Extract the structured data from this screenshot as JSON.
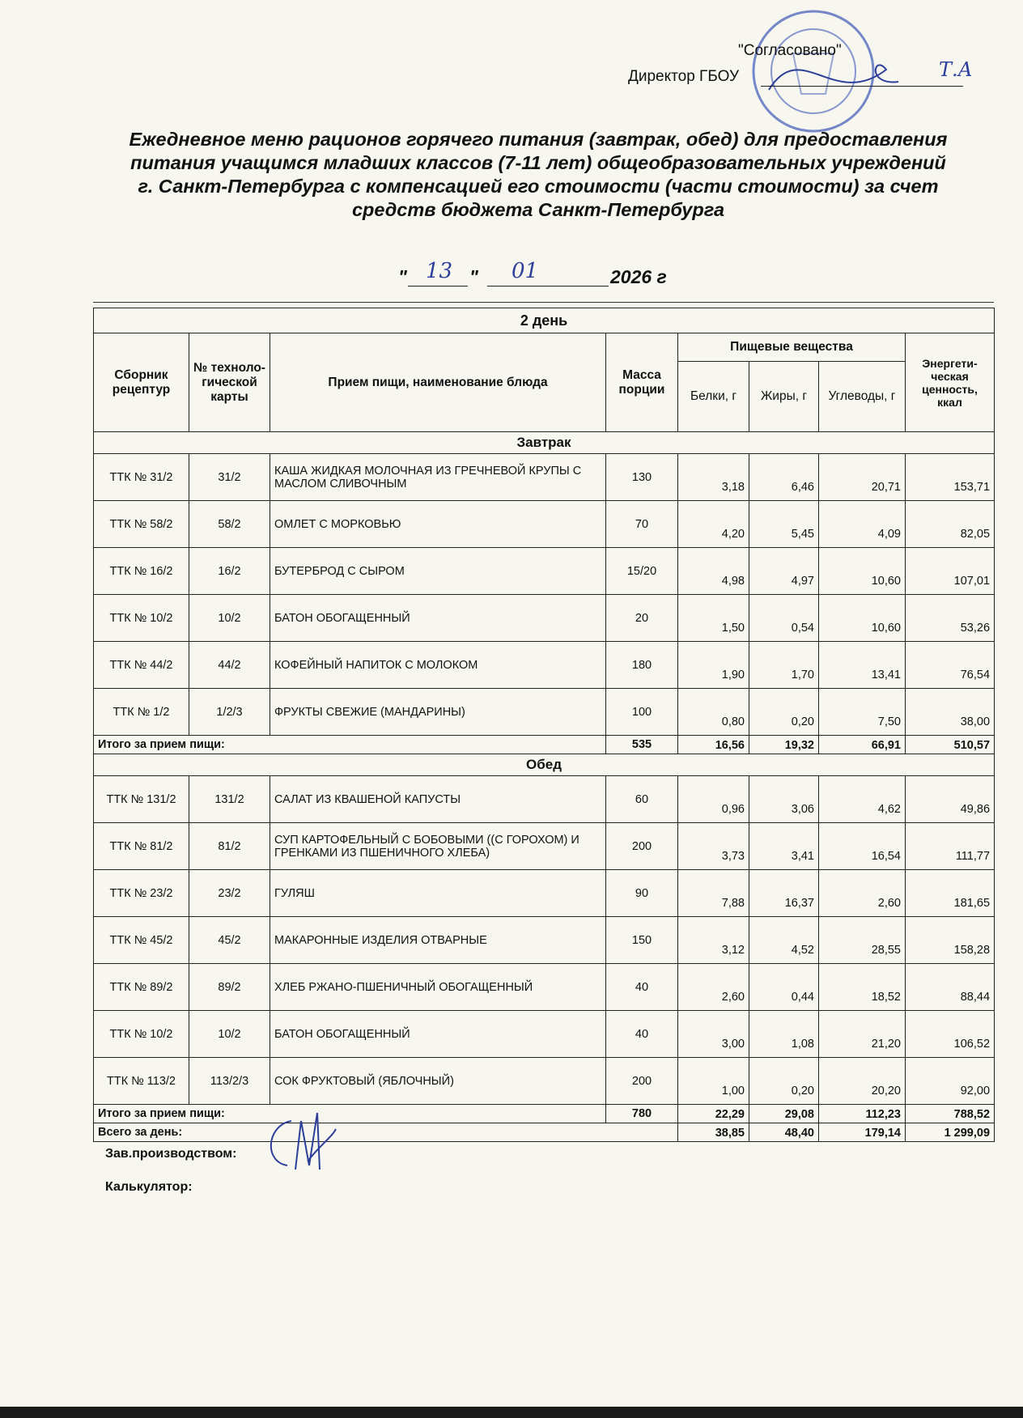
{
  "header": {
    "approval": "\"Согласовано\"",
    "director": "Директор ГБОУ",
    "signature": "Т.А"
  },
  "title_lines": [
    "Ежедневное меню рационов горячего питания (завтрак, обед) для предоставления",
    "питания учащимся младших классов  (7-11 лет) общеобразовательных учреждений",
    "г. Санкт-Петербурга с компенсацией его стоимости (части стоимости) за счет",
    "средств бюджета Санкт-Петербурга"
  ],
  "date": {
    "quote": "\"",
    "day": "13",
    "month": "01",
    "year": "2026 г"
  },
  "table": {
    "day_label": "2 день",
    "columns": {
      "collection": "Сборник рецептур",
      "card": "№ техноло-гической карты",
      "dish": "Прием пищи, наименование блюда",
      "mass": "Масса порции",
      "nutrients": "Пищевые вещества",
      "protein": "Белки, г",
      "fat": "Жиры, г",
      "carbs": "Углеводы, г",
      "energy": "Энергети-ческая ценность, ккал"
    },
    "sections": [
      {
        "name": "Завтрак",
        "rows": [
          [
            "ТТК № 31/2",
            "31/2",
            "КАША ЖИДКАЯ МОЛОЧНАЯ ИЗ ГРЕЧНЕВОЙ КРУПЫ С МАСЛОМ СЛИВОЧНЫМ",
            "130",
            "3,18",
            "6,46",
            "20,71",
            "153,71"
          ],
          [
            "ТТК № 58/2",
            "58/2",
            "ОМЛЕТ С МОРКОВЬЮ",
            "70",
            "4,20",
            "5,45",
            "4,09",
            "82,05"
          ],
          [
            "ТТК № 16/2",
            "16/2",
            "БУТЕРБРОД С СЫРОМ",
            "15/20",
            "4,98",
            "4,97",
            "10,60",
            "107,01"
          ],
          [
            "ТТК № 10/2",
            "10/2",
            "БАТОН ОБОГАЩЕННЫЙ",
            "20",
            "1,50",
            "0,54",
            "10,60",
            "53,26"
          ],
          [
            "ТТК № 44/2",
            "44/2",
            "КОФЕЙНЫЙ НАПИТОК С МОЛОКОМ",
            "180",
            "1,90",
            "1,70",
            "13,41",
            "76,54"
          ],
          [
            "ТТК № 1/2",
            "1/2/3",
            "ФРУКТЫ СВЕЖИЕ (МАНДАРИНЫ)",
            "100",
            "0,80",
            "0,20",
            "7,50",
            "38,00"
          ]
        ],
        "total": {
          "label": "Итого за прием пищи:",
          "values": [
            "535",
            "16,56",
            "19,32",
            "66,91",
            "510,57"
          ]
        }
      },
      {
        "name": "Обед",
        "rows": [
          [
            "ТТК № 131/2",
            "131/2",
            "САЛАТ ИЗ КВАШЕНОЙ КАПУСТЫ",
            "60",
            "0,96",
            "3,06",
            "4,62",
            "49,86"
          ],
          [
            "ТТК № 81/2",
            "81/2",
            "СУП КАРТОФЕЛЬНЫЙ С БОБОВЫМИ ((С ГОРОХОМ) И ГРЕНКАМИ ИЗ ПШЕНИЧНОГО ХЛЕБА)",
            "200",
            "3,73",
            "3,41",
            "16,54",
            "111,77"
          ],
          [
            "ТТК № 23/2",
            "23/2",
            "ГУЛЯШ",
            "90",
            "7,88",
            "16,37",
            "2,60",
            "181,65"
          ],
          [
            "ТТК № 45/2",
            "45/2",
            "МАКАРОННЫЕ ИЗДЕЛИЯ ОТВАРНЫЕ",
            "150",
            "3,12",
            "4,52",
            "28,55",
            "158,28"
          ],
          [
            "ТТК № 89/2",
            "89/2",
            "ХЛЕБ РЖАНО-ПШЕНИЧНЫЙ ОБОГАЩЕННЫЙ",
            "40",
            "2,60",
            "0,44",
            "18,52",
            "88,44"
          ],
          [
            "ТТК № 10/2",
            "10/2",
            "БАТОН ОБОГАЩЕННЫЙ",
            "40",
            "3,00",
            "1,08",
            "21,20",
            "106,52"
          ],
          [
            "ТТК № 113/2",
            "113/2/3",
            "СОК ФРУКТОВЫЙ (ЯБЛОЧНЫЙ)",
            "200",
            "1,00",
            "0,20",
            "20,20",
            "92,00"
          ]
        ],
        "total": {
          "label": "Итого за прием пищи:",
          "values": [
            "780",
            "22,29",
            "29,08",
            "112,23",
            "788,52"
          ]
        }
      }
    ],
    "day_total": {
      "label": "Всего за день:",
      "values": [
        "38,85",
        "48,40",
        "179,14",
        "1 299,09"
      ]
    }
  },
  "footer": {
    "production": "Зав.производством:",
    "calculator": "Калькулятор:"
  }
}
